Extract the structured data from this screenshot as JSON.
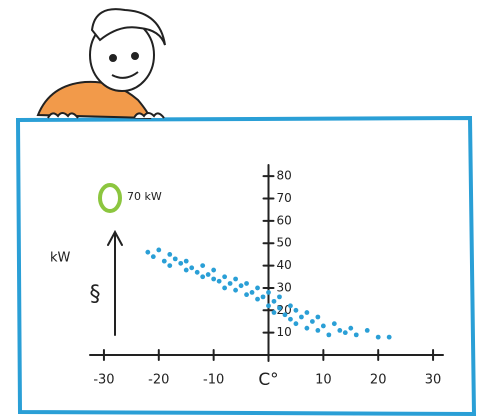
{
  "chart_data": {
    "type": "scatter",
    "xlabel": "C°",
    "ylabel": "kW",
    "annotations": [
      "§",
      "70 kW"
    ],
    "color": "#2a9fd6",
    "x": [
      -22,
      -21,
      -20,
      -19,
      -18,
      -18,
      -17,
      -16,
      -15,
      -15,
      -14,
      -13,
      -12,
      -12,
      -11,
      -10,
      -10,
      -9,
      -8,
      -8,
      -7,
      -6,
      -6,
      -5,
      -4,
      -4,
      -3,
      -2,
      -2,
      -1,
      0,
      0,
      1,
      1,
      2,
      2,
      3,
      4,
      4,
      5,
      5,
      6,
      7,
      7,
      8,
      9,
      9,
      10,
      11,
      12,
      13,
      14,
      15,
      16,
      18,
      20,
      22
    ],
    "values": [
      46,
      44,
      47,
      42,
      45,
      40,
      43,
      41,
      38,
      42,
      39,
      37,
      40,
      35,
      36,
      34,
      38,
      33,
      35,
      30,
      32,
      29,
      34,
      31,
      27,
      32,
      28,
      25,
      30,
      26,
      22,
      28,
      24,
      19,
      21,
      26,
      18,
      22,
      16,
      20,
      14,
      17,
      12,
      19,
      15,
      11,
      17,
      13,
      9,
      14,
      11,
      10,
      12,
      9,
      11,
      8,
      8
    ],
    "xlim": [
      -34,
      34
    ],
    "ylim": [
      0,
      85
    ],
    "xticks": [
      -30,
      -20,
      -10,
      10,
      20,
      30
    ],
    "yticks": [
      10,
      20,
      30,
      40,
      50,
      60,
      70,
      80
    ]
  }
}
